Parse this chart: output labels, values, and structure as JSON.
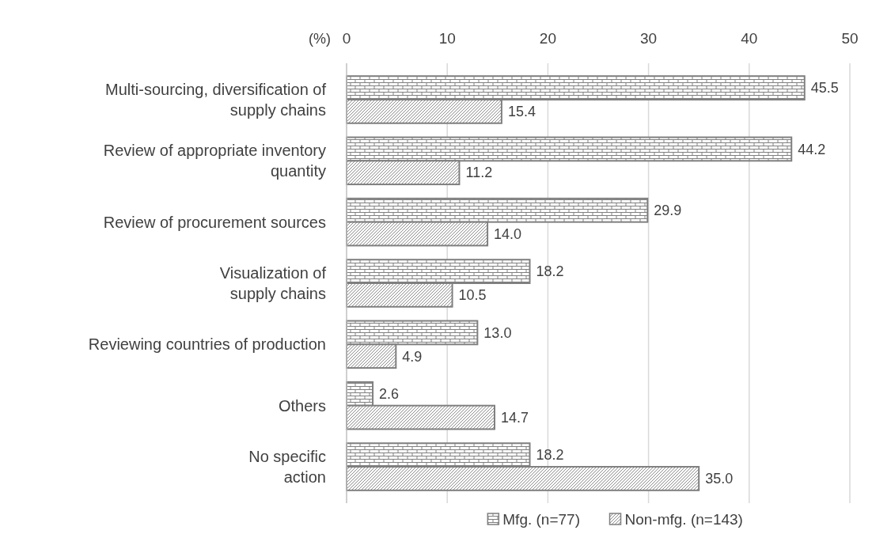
{
  "chart_data": {
    "type": "bar",
    "orientation": "horizontal",
    "xlabel": "(%)",
    "categories": [
      "Multi-sourcing, diversification of\nsupply chains",
      "Review of appropriate inventory\nquantity",
      "Review of procurement sources",
      "Visualization of\nsupply chains",
      "Reviewing countries of production",
      "Others",
      "No specific\naction"
    ],
    "series": [
      {
        "name": "Mfg. (n=77)",
        "color": "#7f7f7f",
        "values": [
          45.5,
          44.2,
          29.9,
          18.2,
          13.0,
          2.6,
          18.2
        ],
        "value_labels": [
          "45.5",
          "44.2",
          "29.9",
          "18.2",
          "13.0",
          "2.6",
          "18.2"
        ]
      },
      {
        "name": "Non-mfg. (n=143)",
        "color": "#7f7f7f",
        "values": [
          15.4,
          11.2,
          14.0,
          10.5,
          4.9,
          14.7,
          35.0
        ],
        "value_labels": [
          "15.4",
          "11.2",
          "14.0",
          "10.5",
          "4.9",
          "14.7",
          "35.0"
        ]
      }
    ],
    "xlim": [
      0,
      50
    ],
    "xticks": [
      0,
      10,
      20,
      30,
      40,
      50
    ],
    "grid": "x",
    "legend": "bottom"
  }
}
